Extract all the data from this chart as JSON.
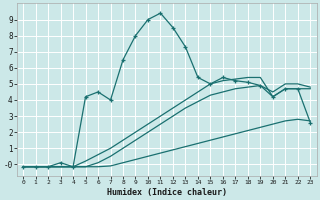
{
  "xlabel": "Humidex (Indice chaleur)",
  "bg_color": "#cce8e8",
  "grid_color": "#b8d8d8",
  "line_color": "#1a7070",
  "xlim": [
    -0.5,
    23.5
  ],
  "ylim": [
    -0.7,
    10.0
  ],
  "xticks": [
    0,
    1,
    2,
    3,
    4,
    5,
    6,
    7,
    8,
    9,
    10,
    11,
    12,
    13,
    14,
    15,
    16,
    17,
    18,
    19,
    20,
    21,
    22,
    23
  ],
  "yticks": [
    0,
    1,
    2,
    3,
    4,
    5,
    6,
    7,
    8,
    9
  ],
  "ytick_labels": [
    "-0",
    "1",
    "2",
    "3",
    "4",
    "5",
    "6",
    "7",
    "8",
    "9"
  ],
  "line1_x": [
    0,
    1,
    2,
    3,
    4,
    5,
    6,
    7,
    8,
    9,
    10,
    11,
    12,
    13,
    14,
    15,
    16,
    17,
    18,
    19,
    20,
    21,
    22,
    23
  ],
  "line1_y": [
    -0.15,
    -0.15,
    -0.15,
    -0.15,
    -0.15,
    -0.15,
    -0.15,
    -0.1,
    0.1,
    0.3,
    0.5,
    0.7,
    0.9,
    1.1,
    1.3,
    1.5,
    1.7,
    1.9,
    2.1,
    2.3,
    2.5,
    2.7,
    2.8,
    2.7
  ],
  "line2_x": [
    0,
    1,
    2,
    3,
    4,
    5,
    6,
    7,
    8,
    9,
    10,
    11,
    12,
    13,
    14,
    15,
    16,
    17,
    18,
    19,
    20,
    21,
    22,
    23
  ],
  "line2_y": [
    -0.15,
    -0.15,
    -0.15,
    -0.15,
    -0.15,
    -0.15,
    0.1,
    0.5,
    1.0,
    1.5,
    2.0,
    2.5,
    3.0,
    3.5,
    3.9,
    4.3,
    4.5,
    4.7,
    4.8,
    4.9,
    4.5,
    5.0,
    5.0,
    4.8
  ],
  "line3_x": [
    0,
    1,
    2,
    3,
    4,
    5,
    6,
    7,
    8,
    9,
    10,
    11,
    12,
    13,
    14,
    15,
    16,
    17,
    18,
    19,
    20,
    21,
    22,
    23
  ],
  "line3_y": [
    -0.15,
    -0.15,
    -0.15,
    -0.15,
    -0.15,
    0.2,
    0.6,
    1.0,
    1.5,
    2.0,
    2.5,
    3.0,
    3.5,
    4.0,
    4.5,
    5.0,
    5.2,
    5.3,
    5.4,
    5.4,
    4.2,
    4.7,
    4.7,
    4.7
  ],
  "curve_x": [
    0,
    1,
    2,
    3,
    4,
    5,
    6,
    7,
    8,
    9,
    10,
    11,
    12,
    13,
    14,
    15,
    16,
    17,
    18,
    19,
    20,
    21,
    22,
    23
  ],
  "curve_y": [
    -0.15,
    -0.15,
    -0.15,
    0.1,
    -0.15,
    4.2,
    4.5,
    4.0,
    6.5,
    8.0,
    9.0,
    9.4,
    8.5,
    7.3,
    5.4,
    5.0,
    5.4,
    5.2,
    5.1,
    4.9,
    4.2,
    4.7,
    4.7,
    2.6
  ]
}
